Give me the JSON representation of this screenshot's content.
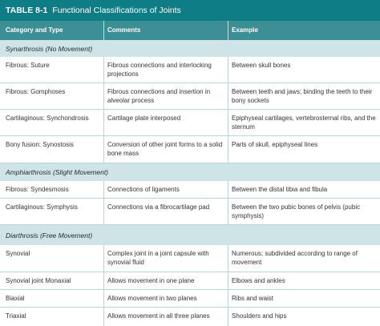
{
  "table": {
    "number": "TABLE 8-1",
    "title": "Functional Classifications of Joints",
    "headers": [
      "Category and Type",
      "Comments",
      "Example"
    ]
  },
  "sections": [
    {
      "heading": "Synarthrosis (No Movement)",
      "rows": [
        [
          "Fibrous: Suture",
          "Fibrous connections and interlocking projections",
          "Between skull bones"
        ],
        [
          "Fibrous: Gomphoses",
          "Fibrous connections and insertion in alveolar process",
          "Between teeth and jaws; binding the teeth to their bony sockets"
        ],
        [
          "Cartilaginous: Synchondrosis",
          "Cartilage plate interposed",
          "Epiphyseal cartilages, vertebrosternal ribs, and the sternum"
        ],
        [
          "Bony fusion: Synostosis",
          "Conversion of other joint forms to a solid bone mass",
          "Parts of skull, epiphyseal lines"
        ]
      ]
    },
    {
      "heading": "Amphiarthrosis (Slight Movement)",
      "rows": [
        [
          "Fibrous: Syndesmosis",
          "Connections of ligaments",
          "Between the distal tibia and fibula"
        ],
        [
          "Cartilaginous: Symphysis",
          "Connections via a fibrocartilage pad",
          "Between the two pubic bones of pelvis (pubic symphysis)"
        ]
      ]
    },
    {
      "heading": "Diarthrosis (Free Movement)",
      "rows": [
        [
          "Synovial",
          "Complex joint in a joint capsule with synovial fluid",
          "Numerous; subdivided according to range of movement"
        ],
        [
          "Synovial joint Monaxial",
          "Allows movement in one plane",
          "Elbows and ankles"
        ],
        [
          "Biaxial",
          "Allows movement in two planes",
          "Ribs and waist"
        ],
        [
          "Triaxial",
          "Allows movement in all three planes",
          "Shoulders and hips"
        ]
      ]
    }
  ],
  "colors": {
    "title_bar": "#0f7d86",
    "header_row": "#3d8f96",
    "section_band": "#cfe4e6",
    "divider": "#b9d3d6"
  }
}
